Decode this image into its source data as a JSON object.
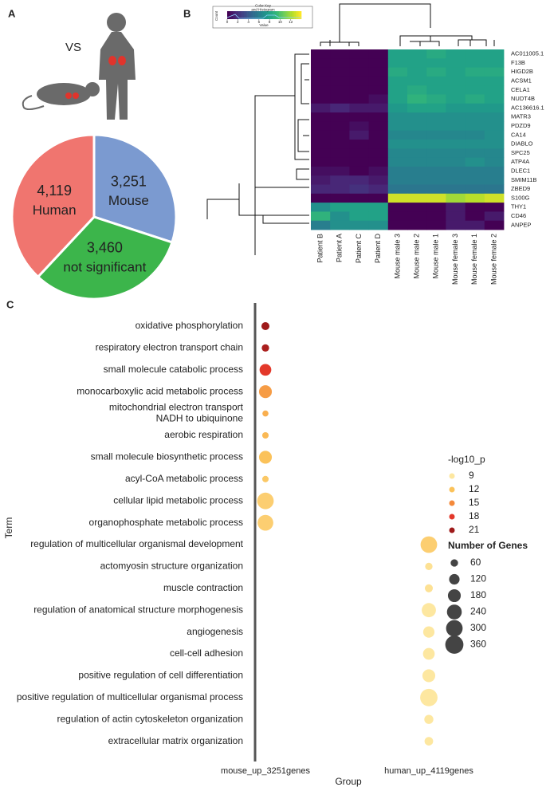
{
  "chart_data": [
    {
      "type": "pie",
      "panel": "A",
      "annotation": "VS",
      "categories": [
        "Mouse",
        "not significant",
        "Human"
      ],
      "values": [
        3251,
        3460,
        4119
      ],
      "value_labels": [
        "3,251",
        "3,460",
        "4,119"
      ],
      "colors": [
        "#7b9ad0",
        "#3cb54b",
        "#f0756f"
      ]
    },
    {
      "type": "heatmap",
      "panel": "B",
      "columns": [
        "Patient B",
        "Patient A",
        "Patient C",
        "Patient D",
        "Mouse male 3",
        "Mouse male 2",
        "Mouse male 1",
        "Mouse female 3",
        "Mouse female 1",
        "Mouse female 2"
      ],
      "rows": [
        "AC011005.1",
        "F13B",
        "HIGD2B",
        "ACSM1",
        "CELA1",
        "NUDT4B",
        "AC136616.1",
        "MATR3",
        "PDZD9",
        "CA14",
        "DIABLO",
        "SPC25",
        "ATP4A",
        "DLEC1",
        "SMIM11B",
        "ZBED9",
        "S100G",
        "THY1",
        "CD46",
        "ANPEP"
      ],
      "values": [
        [
          0,
          0,
          0,
          0,
          8,
          8,
          8.5,
          8,
          8,
          8
        ],
        [
          0,
          0,
          0,
          0,
          8,
          8,
          8,
          8,
          8,
          8
        ],
        [
          0,
          0,
          0,
          0,
          8.5,
          8,
          8.5,
          8,
          8.5,
          8.5
        ],
        [
          0,
          0,
          0,
          0,
          8,
          8,
          8,
          8,
          8,
          8
        ],
        [
          0,
          0,
          0,
          0,
          8,
          8.5,
          8,
          8,
          8,
          8
        ],
        [
          0,
          0,
          0,
          0.5,
          8,
          9,
          8.5,
          8,
          8.5,
          8
        ],
        [
          1,
          1.5,
          1,
          1,
          7.5,
          8,
          8,
          7.5,
          7.5,
          7.5
        ],
        [
          0,
          0,
          0,
          0,
          7,
          7,
          7,
          7,
          7,
          7
        ],
        [
          0,
          0,
          0.5,
          0,
          7,
          7,
          7,
          7,
          7,
          7
        ],
        [
          0,
          0,
          1,
          0,
          6.5,
          6.5,
          6.5,
          6.5,
          6.5,
          7
        ],
        [
          0,
          0,
          0,
          0,
          7,
          7,
          7,
          7,
          7,
          7
        ],
        [
          0,
          0,
          0,
          0,
          6.5,
          6.5,
          6.5,
          6.5,
          6.5,
          6.5
        ],
        [
          0,
          0,
          0,
          0,
          6.5,
          6.5,
          6.5,
          6.5,
          7,
          6.5
        ],
        [
          0.5,
          0.5,
          0,
          0.5,
          6,
          6,
          6,
          6,
          6,
          6
        ],
        [
          1,
          1.5,
          1.5,
          1,
          6,
          6,
          6,
          6,
          6,
          6
        ],
        [
          1.5,
          1.5,
          2,
          1.5,
          5.5,
          5.5,
          5.5,
          5.5,
          5.5,
          5.5
        ],
        [
          0,
          0,
          0,
          0,
          13,
          13,
          13,
          12,
          12.5,
          13
        ],
        [
          7,
          8,
          8,
          8,
          0,
          0,
          0,
          1,
          0,
          0
        ],
        [
          9,
          7,
          8,
          8,
          0,
          0,
          0,
          1,
          0,
          1
        ],
        [
          6,
          7,
          7,
          7,
          0,
          0,
          0,
          1,
          1,
          0
        ]
      ],
      "colorbar": {
        "title": "Color Key\nand Histogram",
        "xlabel": "Value",
        "ylabel": "Count",
        "lim": [
          0,
          14
        ],
        "ticks": [
          0,
          2,
          4,
          6,
          8,
          10,
          12
        ]
      }
    },
    {
      "type": "dot",
      "panel": "C",
      "xlabel": "Group",
      "ylabel": "Term",
      "groups": [
        "mouse_up_3251genes",
        "human_up_4119genes"
      ],
      "categories": [
        "oxidative phosphorylation",
        "respiratory electron transport chain",
        "small molecule catabolic process",
        "monocarboxylic acid metabolic process",
        "mitochondrial electron transport\nNADH to ubiquinone",
        "aerobic respiration",
        "small molecule biosynthetic process",
        "acyl-CoA metabolic process",
        "cellular lipid metabolic process",
        "organophosphate metabolic process",
        "regulation of multicellular organismal development",
        "actomyosin structure organization",
        "muscle contraction",
        "regulation of anatomical structure morphogenesis",
        "angiogenesis",
        "cell-cell adhesion",
        "positive regulation of cell differentiation",
        "positive regulation of multicellular organismal process",
        "regulation of actin cytoskeleton organization",
        "extracellular matrix organization"
      ],
      "series": [
        {
          "values": [
            21,
            20.5,
            18,
            14,
            13,
            12.5,
            12,
            11.5,
            11,
            11,
            null,
            null,
            null,
            null,
            null,
            null,
            null,
            null,
            null,
            null
          ],
          "sizes": [
            70,
            60,
            150,
            180,
            40,
            45,
            180,
            45,
            300,
            270,
            null,
            null,
            null,
            null,
            null,
            null,
            null,
            null,
            null,
            null
          ]
        },
        {
          "values": [
            null,
            null,
            null,
            null,
            null,
            null,
            null,
            null,
            null,
            null,
            11,
            9.5,
            9.5,
            9,
            9,
            8.5,
            8.5,
            8,
            8,
            8
          ],
          "sizes": [
            null,
            null,
            null,
            null,
            null,
            null,
            null,
            null,
            null,
            null,
            300,
            60,
            70,
            220,
            140,
            150,
            180,
            330,
            90,
            80
          ]
        }
      ],
      "color_legend": {
        "title": "-log10_p",
        "values": [
          9,
          12,
          15,
          18,
          21
        ],
        "colors": [
          "#fde7a0",
          "#fbc25a",
          "#f4893a",
          "#e3382a",
          "#9e1a1a"
        ]
      },
      "size_legend": {
        "title": "Number of Genes",
        "values": [
          60,
          120,
          180,
          240,
          300,
          360
        ]
      }
    }
  ]
}
